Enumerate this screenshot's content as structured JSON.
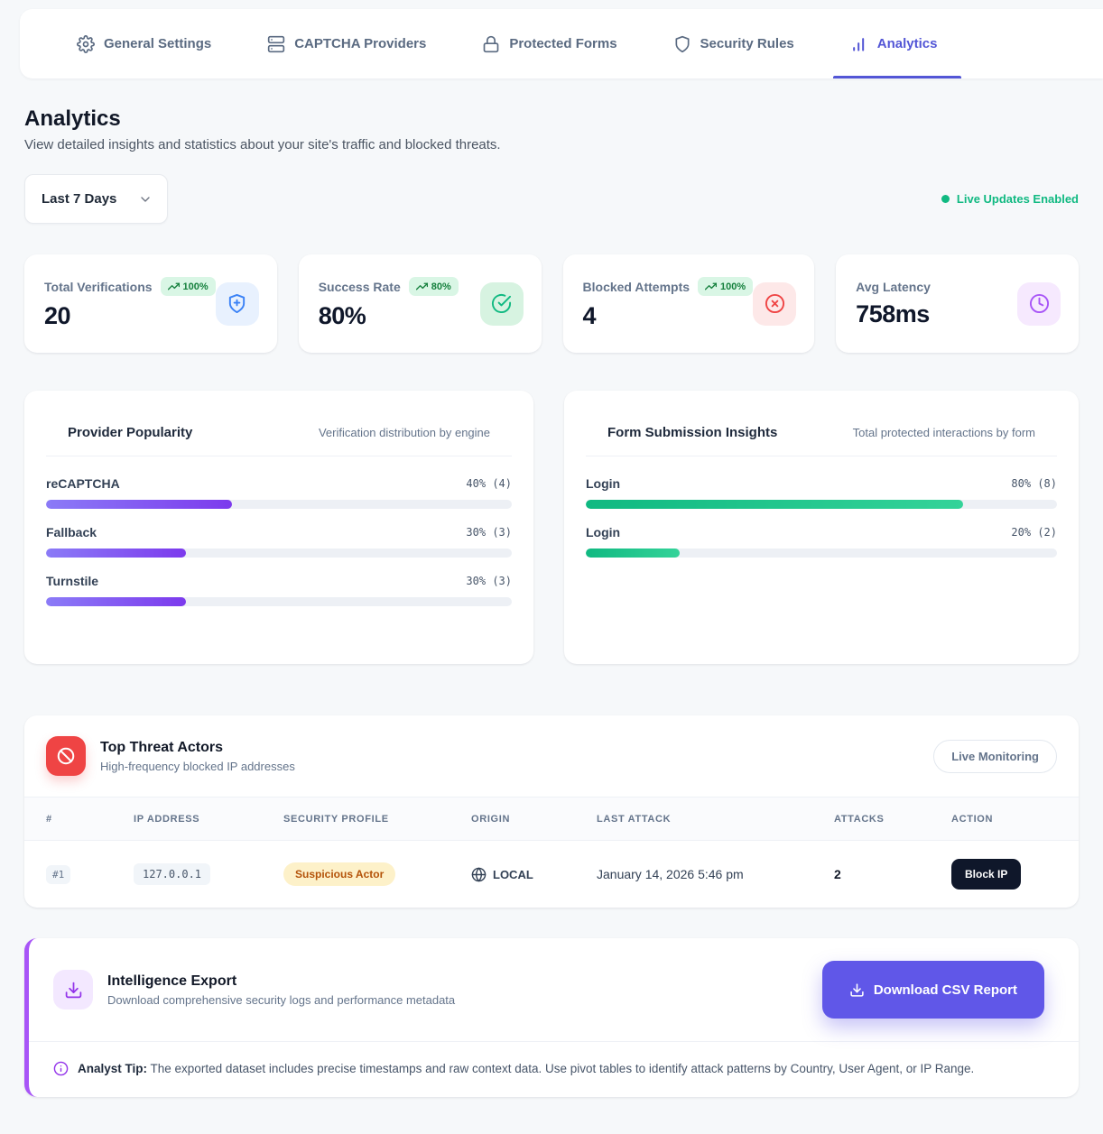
{
  "nav": {
    "tabs": [
      {
        "label": "General Settings"
      },
      {
        "label": "CAPTCHA Providers"
      },
      {
        "label": "Protected Forms"
      },
      {
        "label": "Security Rules"
      },
      {
        "label": "Analytics"
      }
    ]
  },
  "header": {
    "title": "Analytics",
    "subtitle": "View detailed insights and statistics about your site's traffic and blocked threats."
  },
  "controls": {
    "range_selected": "Last 7 Days",
    "live_status": "Live Updates Enabled"
  },
  "stats": [
    {
      "label": "Total Verifications",
      "badge": "100%",
      "value": "20",
      "icon": "shield-plus"
    },
    {
      "label": "Success Rate",
      "badge": "80%",
      "value": "80%",
      "icon": "check-circle"
    },
    {
      "label": "Blocked Attempts",
      "badge": "100%",
      "value": "4",
      "icon": "x-circle"
    },
    {
      "label": "Avg Latency",
      "badge": null,
      "value": "758ms",
      "icon": "clock"
    }
  ],
  "chart_data": [
    {
      "type": "bar",
      "title": "Provider Popularity",
      "subtitle": "Verification distribution by engine",
      "categories": [
        "reCAPTCHA",
        "Fallback",
        "Turnstile"
      ],
      "values": [
        40,
        30,
        30
      ],
      "counts": [
        4,
        3,
        3
      ],
      "value_labels": [
        "40% (4)",
        "30% (3)",
        "30% (3)"
      ],
      "xlim": [
        0,
        100
      ],
      "bar_color": "#7c3aed",
      "orientation": "horizontal"
    },
    {
      "type": "bar",
      "title": "Form Submission Insights",
      "subtitle": "Total protected interactions by form",
      "categories": [
        "Login",
        "Login"
      ],
      "values": [
        80,
        20
      ],
      "counts": [
        8,
        2
      ],
      "value_labels": [
        "80% (8)",
        "20% (2)"
      ],
      "xlim": [
        0,
        100
      ],
      "bar_color": "#10b981",
      "orientation": "horizontal"
    }
  ],
  "threats": {
    "title": "Top Threat Actors",
    "subtitle": "High-frequency blocked IP addresses",
    "live_button": "Live Monitoring",
    "columns": [
      "#",
      "IP Address",
      "Security Profile",
      "Origin",
      "Last Attack",
      "Attacks",
      "Action"
    ],
    "rows": [
      {
        "rank": "#1",
        "ip": "127.0.0.1",
        "profile": "Suspicious Actor",
        "origin": "LOCAL",
        "last_attack": "January 14, 2026 5:46 pm",
        "attacks": "2",
        "action": "Block IP"
      }
    ]
  },
  "export": {
    "title": "Intelligence Export",
    "subtitle": "Download comprehensive security logs and performance metadata",
    "button": "Download CSV Report",
    "tip_label": "Analyst Tip:",
    "tip_text": "The exported dataset includes precise timestamps and raw context data. Use pivot tables to identify attack patterns by Country, User Agent, or IP Range."
  },
  "colors": {
    "accent_indigo": "#5356d6",
    "green": "#10b981",
    "purple_bar": "#7c3aed",
    "red": "#ef4444",
    "dark_button": "#0f172a",
    "export_button": "#6057e8",
    "warning_badge_bg": "#fdf1c9",
    "warning_badge_text": "#b45309",
    "page_bg": "#f6f8fa"
  }
}
